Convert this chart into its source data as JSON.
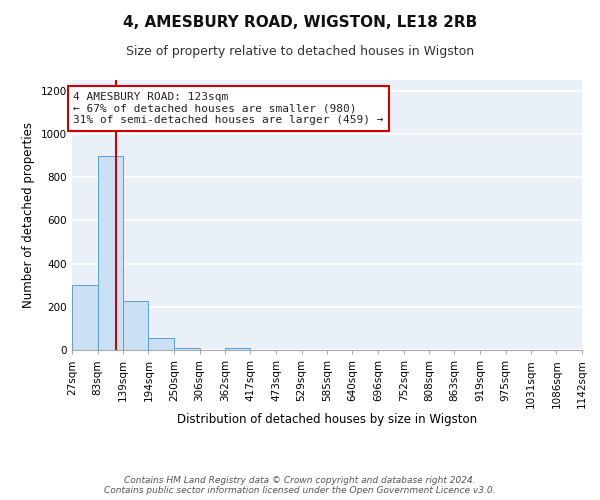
{
  "title1": "4, AMESBURY ROAD, WIGSTON, LE18 2RB",
  "title2": "Size of property relative to detached houses in Wigston",
  "xlabel": "Distribution of detached houses by size in Wigston",
  "ylabel": "Number of detached properties",
  "bin_edges": [
    27,
    83,
    139,
    194,
    250,
    306,
    362,
    417,
    473,
    529,
    585,
    640,
    696,
    752,
    808,
    863,
    919,
    975,
    1031,
    1086,
    1142
  ],
  "bar_heights": [
    300,
    900,
    225,
    55,
    10,
    0,
    10,
    0,
    0,
    0,
    0,
    0,
    0,
    0,
    0,
    0,
    0,
    0,
    0,
    0
  ],
  "bar_color": "#cce0f5",
  "bar_edge_color": "#5a9fd4",
  "property_size": 123,
  "vline_color": "#cc0000",
  "annotation_line1": "4 AMESBURY ROAD: 123sqm",
  "annotation_line2": "← 67% of detached houses are smaller (980)",
  "annotation_line3": "31% of semi-detached houses are larger (459) →",
  "annotation_box_color": "#ffffff",
  "annotation_box_edge_color": "#cc0000",
  "ylim": [
    0,
    1250
  ],
  "yticks": [
    0,
    200,
    400,
    600,
    800,
    1000,
    1200
  ],
  "background_color": "#eaf0f8",
  "grid_color": "#ffffff",
  "footer_line1": "Contains HM Land Registry data © Crown copyright and database right 2024.",
  "footer_line2": "Contains public sector information licensed under the Open Government Licence v3.0.",
  "title1_fontsize": 11,
  "title2_fontsize": 9,
  "xlabel_fontsize": 8.5,
  "ylabel_fontsize": 8.5,
  "tick_fontsize": 7.5,
  "annotation_fontsize": 8,
  "footer_fontsize": 6.5
}
